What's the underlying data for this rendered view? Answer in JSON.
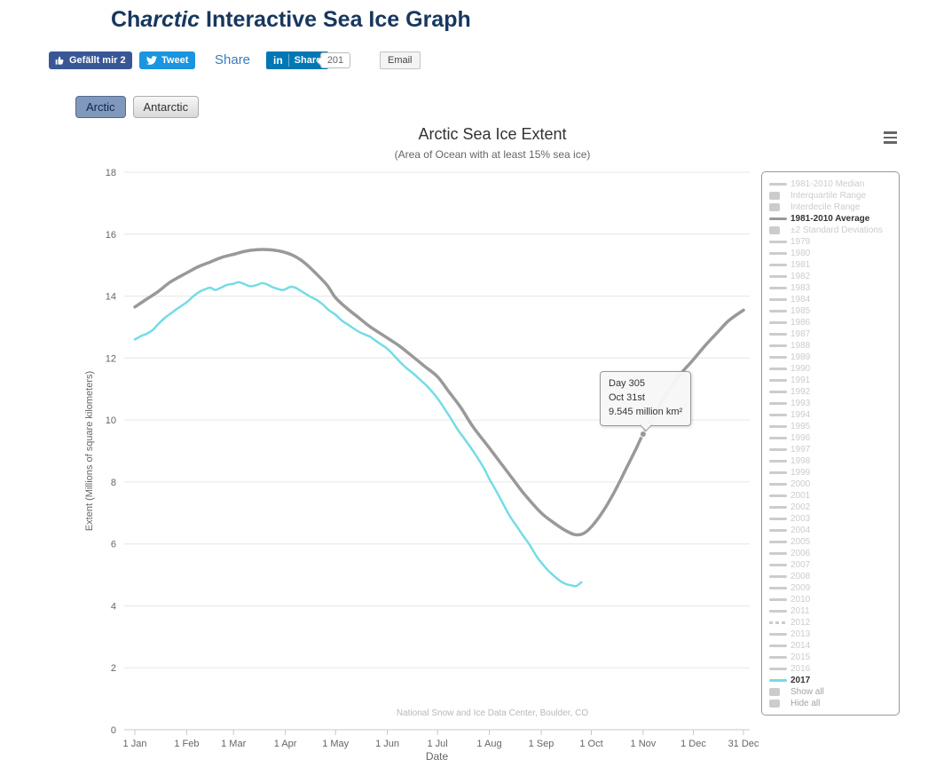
{
  "page": {
    "title_pre": "Ch",
    "title_italic": "arctic",
    "title_post": " Interactive Sea Ice Graph"
  },
  "social": {
    "facebook_label": "Gefällt mir 2",
    "tweet_label": "Tweet",
    "share_label": "Share",
    "linkedin_logo": "in",
    "linkedin_label": "Share",
    "linkedin_count": "201",
    "email_label": "Email"
  },
  "tabs": [
    {
      "label": "Arctic",
      "active": true
    },
    {
      "label": "Antarctic",
      "active": false
    }
  ],
  "chart_data": {
    "type": "line",
    "title": "Arctic Sea Ice Extent",
    "subtitle": "(Area of Ocean with at least 15% sea ice)",
    "xlabel": "Date",
    "ylabel": "Extent (Millions of square kilometers)",
    "ylim": [
      0,
      18
    ],
    "y_ticks": [
      0,
      2,
      4,
      6,
      8,
      10,
      12,
      14,
      16,
      18
    ],
    "x_ticks": [
      {
        "day": 1,
        "label": "1 Jan"
      },
      {
        "day": 32,
        "label": "1 Feb"
      },
      {
        "day": 60,
        "label": "1 Mar"
      },
      {
        "day": 91,
        "label": "1 Apr"
      },
      {
        "day": 121,
        "label": "1 May"
      },
      {
        "day": 152,
        "label": "1 Jun"
      },
      {
        "day": 182,
        "label": "1 Jul"
      },
      {
        "day": 213,
        "label": "1 Aug"
      },
      {
        "day": 244,
        "label": "1 Sep"
      },
      {
        "day": 274,
        "label": "1 Oct"
      },
      {
        "day": 305,
        "label": "1 Nov"
      },
      {
        "day": 335,
        "label": "1 Dec"
      },
      {
        "day": 365,
        "label": "31 Dec"
      }
    ],
    "grid": "horizontal",
    "legend_position": "right",
    "credit": "National Snow and Ice Data Center, Boulder, CO",
    "series": [
      {
        "name": "1981-2010 Average",
        "color": "#999999",
        "width": 3.5,
        "points": [
          [
            1,
            13.65
          ],
          [
            8,
            13.9
          ],
          [
            15,
            14.15
          ],
          [
            22,
            14.45
          ],
          [
            32,
            14.75
          ],
          [
            39,
            14.95
          ],
          [
            46,
            15.1
          ],
          [
            53,
            15.25
          ],
          [
            60,
            15.35
          ],
          [
            67,
            15.45
          ],
          [
            74,
            15.5
          ],
          [
            81,
            15.5
          ],
          [
            88,
            15.45
          ],
          [
            95,
            15.33
          ],
          [
            102,
            15.1
          ],
          [
            109,
            14.75
          ],
          [
            116,
            14.35
          ],
          [
            121,
            13.95
          ],
          [
            128,
            13.6
          ],
          [
            135,
            13.3
          ],
          [
            142,
            13.0
          ],
          [
            152,
            12.65
          ],
          [
            159,
            12.4
          ],
          [
            166,
            12.1
          ],
          [
            174,
            11.75
          ],
          [
            182,
            11.4
          ],
          [
            189,
            10.9
          ],
          [
            196,
            10.4
          ],
          [
            203,
            9.8
          ],
          [
            213,
            9.1
          ],
          [
            220,
            8.6
          ],
          [
            227,
            8.1
          ],
          [
            234,
            7.6
          ],
          [
            244,
            7.0
          ],
          [
            251,
            6.7
          ],
          [
            258,
            6.45
          ],
          [
            264,
            6.3
          ],
          [
            269,
            6.33
          ],
          [
            274,
            6.55
          ],
          [
            281,
            7.05
          ],
          [
            288,
            7.7
          ],
          [
            295,
            8.45
          ],
          [
            301,
            9.1
          ],
          [
            305,
            9.55
          ],
          [
            312,
            10.2
          ],
          [
            319,
            10.85
          ],
          [
            326,
            11.4
          ],
          [
            335,
            11.95
          ],
          [
            342,
            12.4
          ],
          [
            349,
            12.8
          ],
          [
            356,
            13.2
          ],
          [
            365,
            13.55
          ]
        ]
      },
      {
        "name": "2017",
        "color": "#74dce7",
        "width": 2.5,
        "points": [
          [
            1,
            12.6
          ],
          [
            5,
            12.72
          ],
          [
            8,
            12.78
          ],
          [
            12,
            12.92
          ],
          [
            15,
            13.1
          ],
          [
            19,
            13.3
          ],
          [
            22,
            13.42
          ],
          [
            26,
            13.58
          ],
          [
            32,
            13.8
          ],
          [
            36,
            14.0
          ],
          [
            40,
            14.15
          ],
          [
            43,
            14.22
          ],
          [
            46,
            14.27
          ],
          [
            49,
            14.2
          ],
          [
            52,
            14.26
          ],
          [
            56,
            14.36
          ],
          [
            60,
            14.4
          ],
          [
            63,
            14.45
          ],
          [
            66,
            14.4
          ],
          [
            70,
            14.32
          ],
          [
            74,
            14.36
          ],
          [
            77,
            14.42
          ],
          [
            80,
            14.38
          ],
          [
            83,
            14.3
          ],
          [
            86,
            14.24
          ],
          [
            89,
            14.2
          ],
          [
            91,
            14.22
          ],
          [
            94,
            14.3
          ],
          [
            97,
            14.27
          ],
          [
            100,
            14.18
          ],
          [
            103,
            14.08
          ],
          [
            106,
            13.98
          ],
          [
            109,
            13.9
          ],
          [
            113,
            13.75
          ],
          [
            117,
            13.55
          ],
          [
            121,
            13.4
          ],
          [
            125,
            13.2
          ],
          [
            128,
            13.1
          ],
          [
            132,
            12.95
          ],
          [
            135,
            12.85
          ],
          [
            139,
            12.75
          ],
          [
            142,
            12.68
          ],
          [
            146,
            12.52
          ],
          [
            152,
            12.3
          ],
          [
            156,
            12.08
          ],
          [
            160,
            11.85
          ],
          [
            164,
            11.65
          ],
          [
            168,
            11.48
          ],
          [
            172,
            11.28
          ],
          [
            176,
            11.08
          ],
          [
            182,
            10.7
          ],
          [
            186,
            10.38
          ],
          [
            190,
            10.05
          ],
          [
            194,
            9.7
          ],
          [
            198,
            9.4
          ],
          [
            202,
            9.1
          ],
          [
            206,
            8.78
          ],
          [
            210,
            8.42
          ],
          [
            213,
            8.1
          ],
          [
            217,
            7.72
          ],
          [
            221,
            7.32
          ],
          [
            225,
            6.92
          ],
          [
            229,
            6.6
          ],
          [
            233,
            6.28
          ],
          [
            237,
            5.98
          ],
          [
            241,
            5.62
          ],
          [
            244,
            5.4
          ],
          [
            248,
            5.15
          ],
          [
            252,
            4.95
          ],
          [
            256,
            4.78
          ],
          [
            259,
            4.7
          ],
          [
            262,
            4.66
          ],
          [
            265,
            4.64
          ],
          [
            268,
            4.76
          ]
        ]
      }
    ],
    "tooltip": {
      "line1": "Day 305",
      "line2": "Oct 31st",
      "line3": "9.545 million km²",
      "anchor_day": 305,
      "anchor_value": 9.545
    }
  },
  "legend": {
    "items": [
      {
        "label": "1981-2010 Median",
        "symbol": "line",
        "active": false
      },
      {
        "label": "Interquartile Range",
        "symbol": "rect",
        "active": false
      },
      {
        "label": "Interdecile Range",
        "symbol": "rect",
        "active": false
      },
      {
        "label": "1981-2010 Average",
        "symbol": "line",
        "active": true,
        "color": "#999999"
      },
      {
        "label": "±2 Standard Deviations",
        "symbol": "rect",
        "active": false
      },
      {
        "label": "1979",
        "symbol": "line",
        "active": false
      },
      {
        "label": "1980",
        "symbol": "line",
        "active": false
      },
      {
        "label": "1981",
        "symbol": "line",
        "active": false
      },
      {
        "label": "1982",
        "symbol": "line",
        "active": false
      },
      {
        "label": "1983",
        "symbol": "line",
        "active": false
      },
      {
        "label": "1984",
        "symbol": "line",
        "active": false
      },
      {
        "label": "1985",
        "symbol": "line",
        "active": false
      },
      {
        "label": "1986",
        "symbol": "line",
        "active": false
      },
      {
        "label": "1987",
        "symbol": "line",
        "active": false
      },
      {
        "label": "1988",
        "symbol": "line",
        "active": false
      },
      {
        "label": "1989",
        "symbol": "line",
        "active": false
      },
      {
        "label": "1990",
        "symbol": "line",
        "active": false
      },
      {
        "label": "1991",
        "symbol": "line",
        "active": false
      },
      {
        "label": "1992",
        "symbol": "line",
        "active": false
      },
      {
        "label": "1993",
        "symbol": "line",
        "active": false
      },
      {
        "label": "1994",
        "symbol": "line",
        "active": false
      },
      {
        "label": "1995",
        "symbol": "line",
        "active": false
      },
      {
        "label": "1996",
        "symbol": "line",
        "active": false
      },
      {
        "label": "1997",
        "symbol": "line",
        "active": false
      },
      {
        "label": "1998",
        "symbol": "line",
        "active": false
      },
      {
        "label": "1999",
        "symbol": "line",
        "active": false
      },
      {
        "label": "2000",
        "symbol": "line",
        "active": false
      },
      {
        "label": "2001",
        "symbol": "line",
        "active": false
      },
      {
        "label": "2002",
        "symbol": "line",
        "active": false
      },
      {
        "label": "2003",
        "symbol": "line",
        "active": false
      },
      {
        "label": "2004",
        "symbol": "line",
        "active": false
      },
      {
        "label": "2005",
        "symbol": "line",
        "active": false
      },
      {
        "label": "2006",
        "symbol": "line",
        "active": false
      },
      {
        "label": "2007",
        "symbol": "line",
        "active": false
      },
      {
        "label": "2008",
        "symbol": "line",
        "active": false
      },
      {
        "label": "2009",
        "symbol": "line",
        "active": false
      },
      {
        "label": "2010",
        "symbol": "line",
        "active": false
      },
      {
        "label": "2011",
        "symbol": "line",
        "active": false
      },
      {
        "label": "2012",
        "symbol": "dashline",
        "active": false
      },
      {
        "label": "2013",
        "symbol": "line",
        "active": false
      },
      {
        "label": "2014",
        "symbol": "line",
        "active": false
      },
      {
        "label": "2015",
        "symbol": "line",
        "active": false
      },
      {
        "label": "2016",
        "symbol": "line",
        "active": false
      },
      {
        "label": "2017",
        "symbol": "line",
        "active": true,
        "color": "#74dce7"
      },
      {
        "label": "Show all",
        "symbol": "rect",
        "active": false,
        "label_color": "#a3a3a3"
      },
      {
        "label": "Hide all",
        "symbol": "rect",
        "active": false,
        "label_color": "#a3a3a3"
      }
    ]
  }
}
